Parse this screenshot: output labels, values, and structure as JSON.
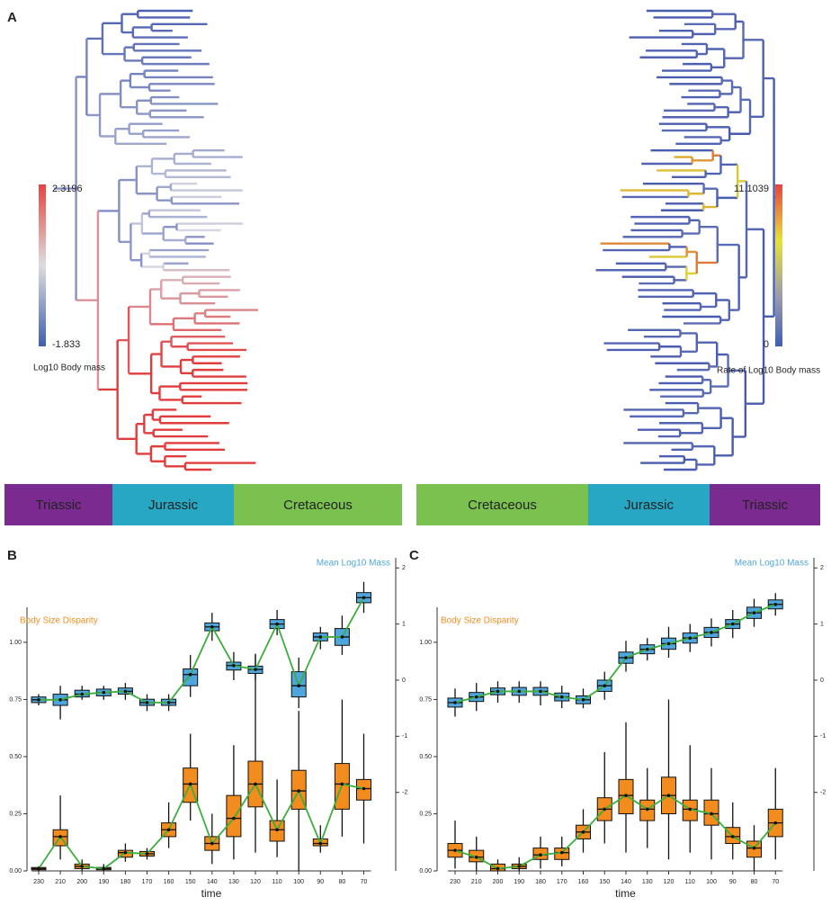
{
  "panel_a": {
    "label": "A",
    "colorbar_left": {
      "max": 2.3196,
      "min": -1.833,
      "title": "Log10 Body mass"
    },
    "colorbar_right": {
      "max": 11.1039,
      "min": 0,
      "title": "Rate of Log10 Body mass"
    },
    "periods_left": [
      {
        "name": "Triassic",
        "color": "#7b2b8f"
      },
      {
        "name": "Jurassic",
        "color": "#27a7c3"
      },
      {
        "name": "Cretaceous",
        "color": "#7ac14f"
      }
    ],
    "periods_right": [
      {
        "name": "Cretaceous",
        "color": "#7ac14f"
      },
      {
        "name": "Jurassic",
        "color": "#27a7c3"
      },
      {
        "name": "Triassic",
        "color": "#7b2b8f"
      }
    ]
  },
  "chart_data": [
    {
      "type": "box",
      "label": "B",
      "xlabel": "time",
      "line_color": "#3cae3c",
      "categories": [
        230,
        210,
        200,
        190,
        180,
        170,
        160,
        150,
        140,
        130,
        120,
        110,
        100,
        90,
        80,
        70
      ],
      "ylim": [
        0,
        1.35
      ],
      "yticks": [
        {
          "value": 0,
          "label": "0.00"
        },
        {
          "value": 0.25,
          "label": "0.25"
        },
        {
          "value": 0.5,
          "label": "0.50"
        },
        {
          "value": 0.75,
          "label": "0.75"
        },
        {
          "value": 1,
          "label": "1.00"
        }
      ],
      "y2lim": [
        -3.4,
        2.1
      ],
      "y2ticks": [
        -2,
        -1,
        0,
        1,
        2
      ],
      "series": [
        {
          "name": "Body Size Disparity",
          "color": "#f28c1e",
          "min": [
            0,
            0.05,
            0,
            0,
            0.04,
            0.05,
            0.1,
            0.22,
            0.03,
            0.05,
            0.08,
            0.06,
            0,
            0.08,
            0.15,
            0.12
          ],
          "q1": [
            0.005,
            0.11,
            0.01,
            0.005,
            0.06,
            0.065,
            0.15,
            0.3,
            0.09,
            0.15,
            0.28,
            0.13,
            0.27,
            0.11,
            0.27,
            0.31
          ],
          "median": [
            0.01,
            0.15,
            0.02,
            0.01,
            0.08,
            0.075,
            0.18,
            0.38,
            0.12,
            0.23,
            0.38,
            0.18,
            0.35,
            0.12,
            0.38,
            0.36
          ],
          "q3": [
            0.015,
            0.18,
            0.03,
            0.015,
            0.09,
            0.085,
            0.21,
            0.45,
            0.15,
            0.33,
            0.48,
            0.22,
            0.44,
            0.14,
            0.47,
            0.4
          ],
          "max": [
            0.02,
            0.33,
            0.05,
            0.03,
            0.12,
            0.1,
            0.3,
            0.6,
            0.25,
            0.55,
            0.95,
            0.4,
            0.7,
            0.2,
            0.75,
            0.6
          ]
        },
        {
          "name": "Mean Log10 Mass",
          "color": "#4ea6dc",
          "axis": "y2",
          "min": [
            -0.45,
            -0.7,
            -0.35,
            -0.35,
            -0.35,
            -0.55,
            -0.55,
            -0.3,
            0.7,
            0.0,
            0.0,
            0.8,
            -0.5,
            0.55,
            0.45,
            1.2
          ],
          "q1": [
            -0.4,
            -0.45,
            -0.3,
            -0.28,
            -0.25,
            -0.45,
            -0.45,
            -0.1,
            0.88,
            0.18,
            0.12,
            0.92,
            -0.3,
            0.7,
            0.62,
            1.38
          ],
          "median": [
            -0.35,
            -0.35,
            -0.25,
            -0.22,
            -0.2,
            -0.4,
            -0.4,
            0.1,
            0.95,
            0.26,
            0.19,
            1.0,
            -0.1,
            0.77,
            0.77,
            1.47
          ],
          "q3": [
            -0.3,
            -0.25,
            -0.18,
            -0.16,
            -0.14,
            -0.34,
            -0.34,
            0.2,
            1.02,
            0.32,
            0.25,
            1.08,
            0.15,
            0.84,
            0.92,
            1.56
          ],
          "max": [
            -0.25,
            -0.1,
            -0.1,
            -0.1,
            -0.05,
            -0.25,
            -0.25,
            0.45,
            1.2,
            0.5,
            0.45,
            1.25,
            0.4,
            0.95,
            1.15,
            1.75
          ]
        }
      ]
    },
    {
      "type": "box",
      "label": "C",
      "xlabel": "time",
      "line_color": "#3cae3c",
      "categories": [
        230,
        210,
        200,
        190,
        180,
        170,
        160,
        150,
        140,
        130,
        120,
        110,
        100,
        90,
        80,
        70
      ],
      "ylim": [
        0,
        1.35
      ],
      "yticks": [
        {
          "value": 0,
          "label": "0.00"
        },
        {
          "value": 0.25,
          "label": "0.25"
        },
        {
          "value": 0.5,
          "label": "0.50"
        },
        {
          "value": 0.75,
          "label": "0.75"
        },
        {
          "value": 1,
          "label": "1.00"
        }
      ],
      "y2lim": [
        -3.4,
        2.1
      ],
      "y2ticks": [
        -2,
        -1,
        0,
        1,
        2
      ],
      "series": [
        {
          "name": "Body Size Disparity",
          "color": "#f28c1e",
          "min": [
            0.01,
            0,
            0,
            0,
            0.01,
            0.02,
            0.08,
            0.12,
            0.08,
            0.1,
            0.05,
            0.08,
            0.05,
            0.05,
            0,
            0.05
          ],
          "q1": [
            0.06,
            0.04,
            0,
            0.01,
            0.05,
            0.05,
            0.14,
            0.22,
            0.25,
            0.22,
            0.25,
            0.22,
            0.2,
            0.12,
            0.06,
            0.15
          ],
          "median": [
            0.09,
            0.06,
            0.01,
            0.02,
            0.07,
            0.08,
            0.17,
            0.27,
            0.33,
            0.27,
            0.33,
            0.27,
            0.25,
            0.15,
            0.1,
            0.21
          ],
          "q3": [
            0.12,
            0.09,
            0.03,
            0.03,
            0.1,
            0.1,
            0.2,
            0.32,
            0.4,
            0.31,
            0.41,
            0.31,
            0.31,
            0.19,
            0.13,
            0.27
          ],
          "max": [
            0.22,
            0.15,
            0.05,
            0.06,
            0.15,
            0.15,
            0.27,
            0.52,
            0.65,
            0.45,
            0.75,
            0.55,
            0.45,
            0.3,
            0.2,
            0.45
          ]
        },
        {
          "name": "Mean Log10 Mass",
          "color": "#4ea6dc",
          "axis": "y2",
          "min": [
            -0.65,
            -0.55,
            -0.4,
            -0.4,
            -0.45,
            -0.5,
            -0.5,
            -0.35,
            0.15,
            0.35,
            0.4,
            0.5,
            0.6,
            0.75,
            0.95,
            1.15
          ],
          "q1": [
            -0.48,
            -0.38,
            -0.26,
            -0.27,
            -0.27,
            -0.37,
            -0.42,
            -0.2,
            0.3,
            0.47,
            0.55,
            0.66,
            0.76,
            0.92,
            1.1,
            1.27
          ],
          "median": [
            -0.4,
            -0.3,
            -0.2,
            -0.2,
            -0.2,
            -0.3,
            -0.35,
            -0.1,
            0.4,
            0.55,
            0.65,
            0.75,
            0.85,
            1.0,
            1.2,
            1.35
          ],
          "q3": [
            -0.32,
            -0.22,
            -0.14,
            -0.13,
            -0.13,
            -0.23,
            -0.28,
            0.0,
            0.5,
            0.63,
            0.75,
            0.84,
            0.94,
            1.08,
            1.3,
            1.43
          ],
          "max": [
            -0.15,
            -0.05,
            -0.02,
            -0.02,
            -0.02,
            -0.1,
            -0.15,
            0.15,
            0.7,
            0.75,
            0.95,
            1.0,
            1.1,
            1.25,
            1.45,
            1.55
          ]
        }
      ]
    }
  ]
}
